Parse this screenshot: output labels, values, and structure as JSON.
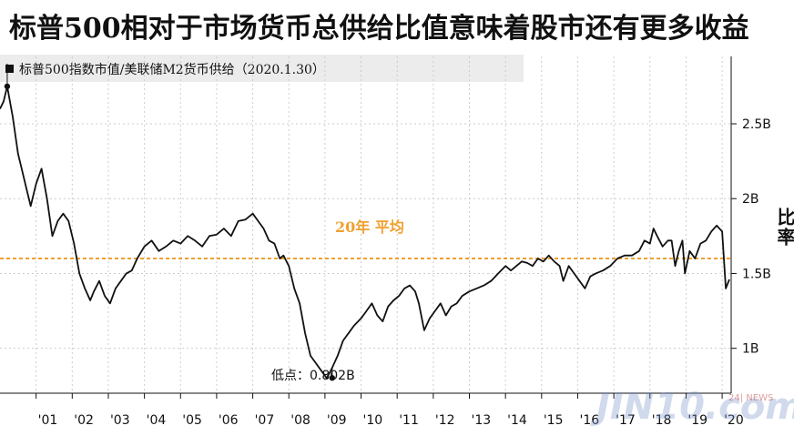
{
  "title": "标普500相对于市场货币总供给比值意味着股市还有更多收益",
  "legend": "标普500指数市值/美联储M2货币供给（2020.1.30）",
  "watermark": {
    "main": "JIN10.com",
    "small": "24| NEWS"
  },
  "colors": {
    "line": "#111111",
    "average": "#f0a030",
    "grid": "#cccccc"
  },
  "chart_data": {
    "type": "line",
    "ylabel": "比率",
    "ylim": [
      0.7,
      2.95
    ],
    "y_ticks": [
      1.0,
      1.5,
      2.0,
      2.5
    ],
    "y_tick_labels": [
      "1B",
      "1.5B",
      "2B",
      "2.5B"
    ],
    "x_start": 2000.0,
    "x_end": 2020.25,
    "x_ticks": [
      2001,
      2002,
      2003,
      2004,
      2005,
      2006,
      2007,
      2008,
      2009,
      2010,
      2011,
      2012,
      2013,
      2014,
      2015,
      2016,
      2017,
      2018,
      2019,
      2020
    ],
    "x_tick_labels": [
      "'01",
      "'02",
      "'03",
      "'04",
      "'05",
      "'06",
      "'07",
      "'08",
      "'09",
      "'10",
      "'11",
      "'12",
      "'13",
      "'14",
      "'15",
      "'16",
      "'17",
      "'18",
      "'19",
      "'20"
    ],
    "grid": "vertical dashed",
    "average": {
      "value": 1.6,
      "label": "20年 平均"
    },
    "low": {
      "x": 2009.2,
      "value": 0.802,
      "label": "低点：",
      "value_text": "0.802B"
    },
    "high": {
      "x": 2000.2,
      "value": 2.75
    },
    "series": [
      {
        "x": [
          2000.0,
          2000.1,
          2000.2,
          2000.35,
          2000.5,
          2000.6,
          2000.75,
          2000.85,
          2001.0,
          2001.15,
          2001.3,
          2001.45,
          2001.6,
          2001.75,
          2001.9,
          2002.05,
          2002.2,
          2002.35,
          2002.5,
          2002.6,
          2002.75,
          2002.9,
          2003.05,
          2003.2,
          2003.35,
          2003.5,
          2003.65,
          2003.8,
          2004.0,
          2004.2,
          2004.4,
          2004.6,
          2004.8,
          2005.0,
          2005.2,
          2005.4,
          2005.6,
          2005.8,
          2006.0,
          2006.2,
          2006.4,
          2006.6,
          2006.8,
          2007.0,
          2007.15,
          2007.3,
          2007.45,
          2007.6,
          2007.75,
          2007.85,
          2008.0,
          2008.15,
          2008.3,
          2008.45,
          2008.6,
          2008.75,
          2008.9,
          2009.05,
          2009.2,
          2009.35,
          2009.5,
          2009.65,
          2009.8,
          2010.0,
          2010.15,
          2010.3,
          2010.45,
          2010.6,
          2010.75,
          2010.9,
          2011.05,
          2011.2,
          2011.35,
          2011.5,
          2011.6,
          2011.75,
          2011.9,
          2012.05,
          2012.2,
          2012.35,
          2012.5,
          2012.65,
          2012.8,
          2013.0,
          2013.2,
          2013.4,
          2013.6,
          2013.8,
          2014.0,
          2014.15,
          2014.3,
          2014.45,
          2014.6,
          2014.75,
          2014.9,
          2015.05,
          2015.2,
          2015.35,
          2015.5,
          2015.6,
          2015.75,
          2015.9,
          2016.05,
          2016.2,
          2016.35,
          2016.5,
          2016.7,
          2016.9,
          2017.1,
          2017.3,
          2017.5,
          2017.7,
          2017.85,
          2018.0,
          2018.1,
          2018.2,
          2018.35,
          2018.5,
          2018.6,
          2018.7,
          2018.8,
          2018.9,
          2018.97,
          2019.1,
          2019.25,
          2019.4,
          2019.55,
          2019.7,
          2019.85,
          2020.0,
          2020.1,
          2020.2
        ],
        "values": [
          2.6,
          2.65,
          2.75,
          2.55,
          2.3,
          2.2,
          2.05,
          1.95,
          2.1,
          2.2,
          2.0,
          1.75,
          1.85,
          1.9,
          1.85,
          1.7,
          1.5,
          1.4,
          1.32,
          1.38,
          1.45,
          1.35,
          1.3,
          1.4,
          1.45,
          1.5,
          1.52,
          1.6,
          1.68,
          1.72,
          1.65,
          1.68,
          1.72,
          1.7,
          1.75,
          1.72,
          1.68,
          1.75,
          1.76,
          1.8,
          1.75,
          1.85,
          1.86,
          1.9,
          1.85,
          1.8,
          1.72,
          1.7,
          1.6,
          1.62,
          1.55,
          1.4,
          1.3,
          1.1,
          0.95,
          0.9,
          0.85,
          0.8,
          0.87,
          0.95,
          1.05,
          1.1,
          1.15,
          1.2,
          1.25,
          1.3,
          1.22,
          1.18,
          1.28,
          1.32,
          1.35,
          1.4,
          1.42,
          1.38,
          1.3,
          1.12,
          1.2,
          1.25,
          1.3,
          1.22,
          1.28,
          1.3,
          1.35,
          1.38,
          1.4,
          1.42,
          1.45,
          1.5,
          1.55,
          1.52,
          1.55,
          1.58,
          1.57,
          1.55,
          1.6,
          1.58,
          1.62,
          1.58,
          1.55,
          1.45,
          1.55,
          1.5,
          1.45,
          1.4,
          1.48,
          1.5,
          1.52,
          1.55,
          1.6,
          1.62,
          1.62,
          1.65,
          1.72,
          1.7,
          1.8,
          1.75,
          1.68,
          1.72,
          1.72,
          1.55,
          1.65,
          1.72,
          1.5,
          1.65,
          1.6,
          1.7,
          1.72,
          1.78,
          1.82,
          1.78,
          1.4,
          1.46
        ]
      }
    ]
  }
}
